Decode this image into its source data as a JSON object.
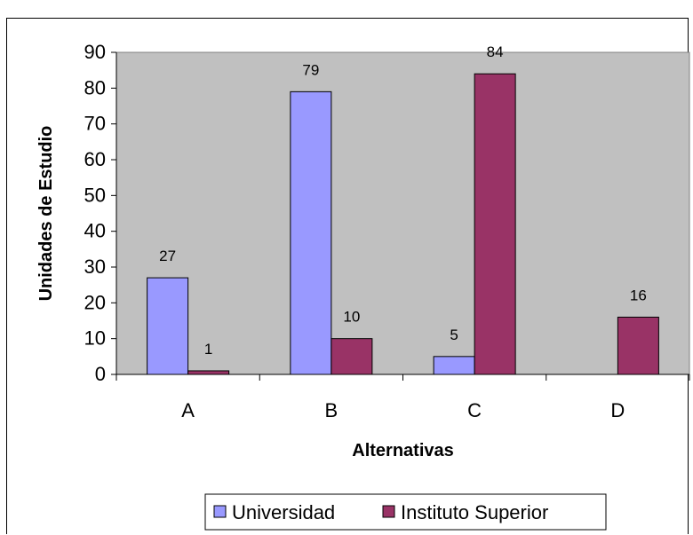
{
  "chart_data": {
    "type": "bar",
    "categories": [
      "A",
      "B",
      "C",
      "D"
    ],
    "series": [
      {
        "name": "Universidad",
        "values": [
          27,
          79,
          5,
          null
        ],
        "labels": [
          "27",
          "79",
          "5",
          ""
        ]
      },
      {
        "name": "Instituto Superior",
        "values": [
          1,
          10,
          84,
          16
        ],
        "labels": [
          "1",
          "10",
          "84",
          "16"
        ]
      }
    ],
    "title": "",
    "xlabel": "Alternativas",
    "ylabel": "Unidades de Estudio",
    "ylim": [
      0,
      90
    ],
    "yticks": [
      "0",
      "10",
      "20",
      "30",
      "40",
      "50",
      "60",
      "70",
      "80",
      "90"
    ],
    "grid": false,
    "legend_position": "bottom",
    "colors": {
      "plot_background": "#c0c0c0",
      "series": [
        "#9999ff",
        "#993366"
      ],
      "axis": "#000000"
    }
  }
}
